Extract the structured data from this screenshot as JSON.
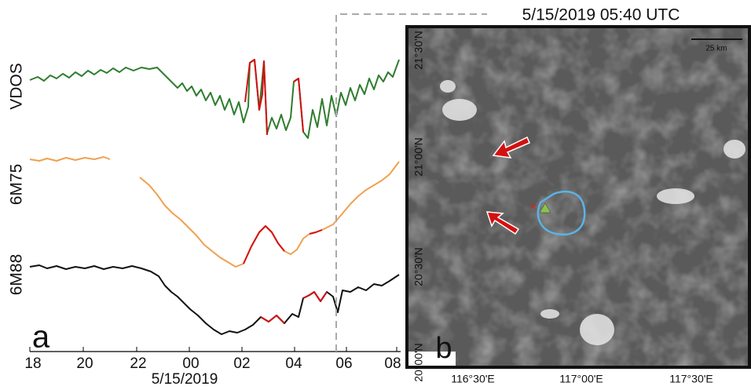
{
  "panel_a": {
    "label": "a",
    "traces": [
      "VDOS",
      "6M75",
      "6M88"
    ],
    "x_ticks": [
      "18",
      "20",
      "22",
      "00",
      "02",
      "04",
      "06",
      "08"
    ],
    "x_label": "5/15/2019"
  },
  "panel_b": {
    "label": "b",
    "title": "5/15/2019 05:40 UTC",
    "scale_bar": "25 km",
    "lat_ticks": [
      "21°30'N",
      "21°00'N",
      "20°30'N",
      "20°00'N"
    ],
    "lon_ticks": [
      "116°30'E",
      "117°00'E",
      "117°30'E"
    ]
  }
}
